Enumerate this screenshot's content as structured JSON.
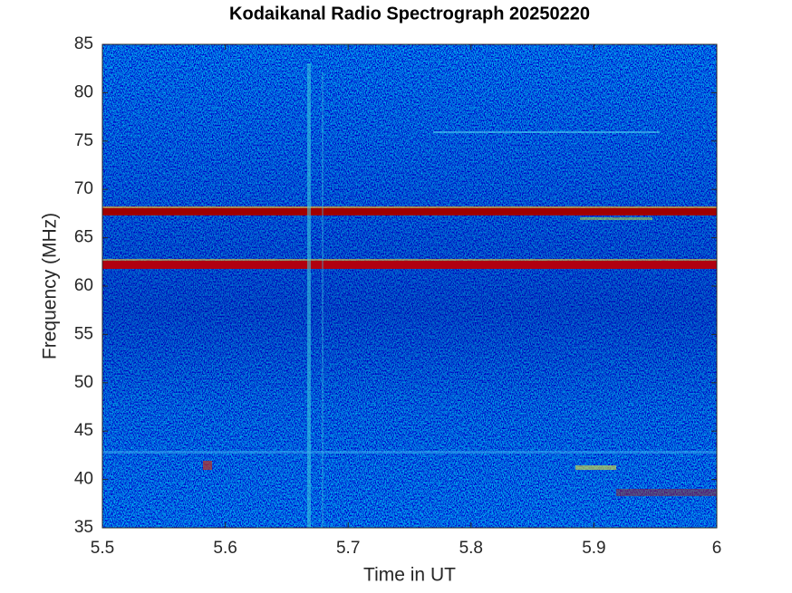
{
  "chart_data": {
    "type": "spectrogram",
    "title": "Kodaikanal Radio Spectrograph  20250220",
    "x_label": "Time in UT",
    "y_label": "Frequency (MHz)",
    "xlim": [
      5.5,
      6
    ],
    "xticks": [
      5.5,
      5.6,
      5.7,
      5.8,
      5.9,
      6
    ],
    "ylim": [
      35,
      85
    ],
    "yticks": [
      35,
      40,
      45,
      50,
      55,
      60,
      65,
      70,
      75,
      80,
      85
    ]
  }
}
